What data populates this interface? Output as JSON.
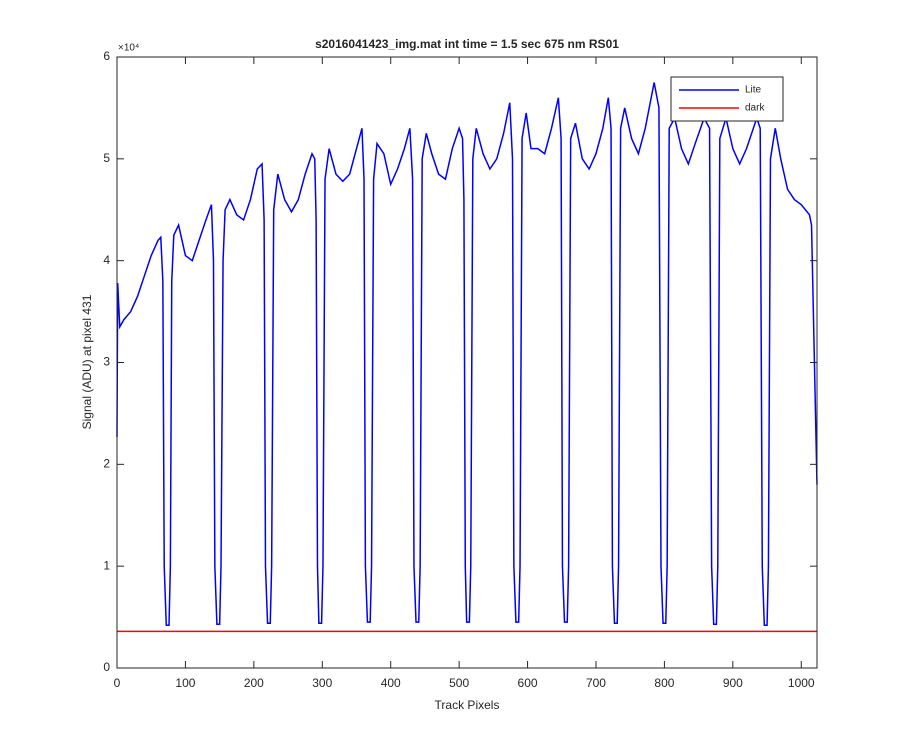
{
  "chart_data": {
    "type": "line",
    "title": "s2016041423_img.mat int time = 1.5 sec  675 nm RS01",
    "xlabel": "Track Pixels",
    "ylabel": "Signal (ADU) at pixel 431",
    "y_exponent_label": "×10⁴",
    "xlim": [
      0,
      1023
    ],
    "ylim": [
      0,
      60000
    ],
    "xticks": [
      0,
      100,
      200,
      300,
      400,
      500,
      600,
      700,
      800,
      900,
      1000
    ],
    "yticks": [
      {
        "value": 0,
        "label": "0"
      },
      {
        "value": 10000,
        "label": "1"
      },
      {
        "value": 20000,
        "label": "2"
      },
      {
        "value": 30000,
        "label": "3"
      },
      {
        "value": 40000,
        "label": "4"
      },
      {
        "value": 50000,
        "label": "5"
      },
      {
        "value": 60000,
        "label": "6"
      }
    ],
    "legend": "northeast",
    "series": [
      {
        "name": "Lite",
        "color": "#0000ff",
        "x": [
          0,
          1,
          4,
          10,
          20,
          30,
          40,
          50,
          60,
          64,
          67,
          69,
          72,
          76,
          78,
          80,
          83,
          90,
          100,
          110,
          120,
          130,
          138,
          141,
          143,
          146,
          150,
          152,
          155,
          158,
          165,
          175,
          185,
          195,
          205,
          212,
          215,
          217,
          220,
          224,
          226,
          229,
          235,
          245,
          255,
          265,
          275,
          285,
          289,
          291,
          293,
          295,
          299,
          301,
          304,
          310,
          320,
          330,
          340,
          350,
          358,
          361,
          363,
          366,
          370,
          372,
          375,
          380,
          390,
          400,
          410,
          420,
          428,
          432,
          434,
          437,
          441,
          443,
          446,
          452,
          460,
          470,
          480,
          490,
          500,
          505,
          507,
          509,
          511,
          515,
          517,
          520,
          525,
          535,
          545,
          555,
          565,
          574,
          578,
          580,
          583,
          587,
          589,
          592,
          598,
          605,
          615,
          625,
          635,
          645,
          649,
          651,
          654,
          658,
          660,
          663,
          670,
          680,
          690,
          700,
          710,
          718,
          722,
          724,
          727,
          731,
          733,
          736,
          742,
          752,
          762,
          772,
          785,
          792,
          795,
          798,
          802,
          804,
          807,
          815,
          825,
          835,
          845,
          858,
          866,
          869,
          872,
          876,
          878,
          881,
          890,
          900,
          910,
          920,
          935,
          940,
          943,
          946,
          950,
          952,
          955,
          962,
          970,
          980,
          990,
          1000,
          1012,
          1015,
          1023
        ],
        "values": [
          22700,
          37800,
          33500,
          34200,
          35000,
          36500,
          38500,
          40500,
          42000,
          42300,
          38000,
          10000,
          4200,
          4200,
          10000,
          38000,
          42500,
          43500,
          40500,
          40000,
          42000,
          44000,
          45500,
          40000,
          10000,
          4300,
          4300,
          10000,
          40000,
          45000,
          46000,
          44500,
          44000,
          46000,
          49000,
          49500,
          44000,
          10000,
          4400,
          4400,
          10000,
          45000,
          48500,
          46000,
          44800,
          46000,
          48500,
          50500,
          50000,
          44000,
          10000,
          4400,
          4400,
          10000,
          48000,
          51000,
          48500,
          47800,
          48500,
          51000,
          53000,
          48000,
          10000,
          4500,
          4500,
          10000,
          48000,
          51500,
          50500,
          47500,
          49000,
          51000,
          53000,
          48000,
          10000,
          4500,
          4500,
          10000,
          50000,
          52500,
          50500,
          48500,
          48000,
          51000,
          53000,
          52000,
          46000,
          10000,
          4500,
          4500,
          10000,
          50000,
          53000,
          50500,
          49000,
          50000,
          52500,
          55500,
          50000,
          10000,
          4500,
          4500,
          10000,
          52000,
          54500,
          51000,
          51000,
          50500,
          53000,
          56000,
          52000,
          10000,
          4500,
          4500,
          10000,
          52000,
          53500,
          50000,
          49000,
          50500,
          53000,
          56000,
          53000,
          10000,
          4400,
          4400,
          10000,
          53000,
          55000,
          52000,
          50500,
          53000,
          57500,
          55000,
          10000,
          4400,
          4400,
          10000,
          53000,
          54000,
          51000,
          49500,
          51500,
          54000,
          53000,
          10000,
          4300,
          4300,
          10000,
          52000,
          54000,
          51000,
          49500,
          51000,
          54000,
          53000,
          10000,
          4200,
          4200,
          10000,
          50000,
          53000,
          50000,
          47000,
          46000,
          45500,
          44500,
          43500,
          18000
        ]
      },
      {
        "name": "dark",
        "color": "#ff0000",
        "x": [
          0,
          1023
        ],
        "values": [
          3600,
          3600
        ]
      }
    ]
  }
}
